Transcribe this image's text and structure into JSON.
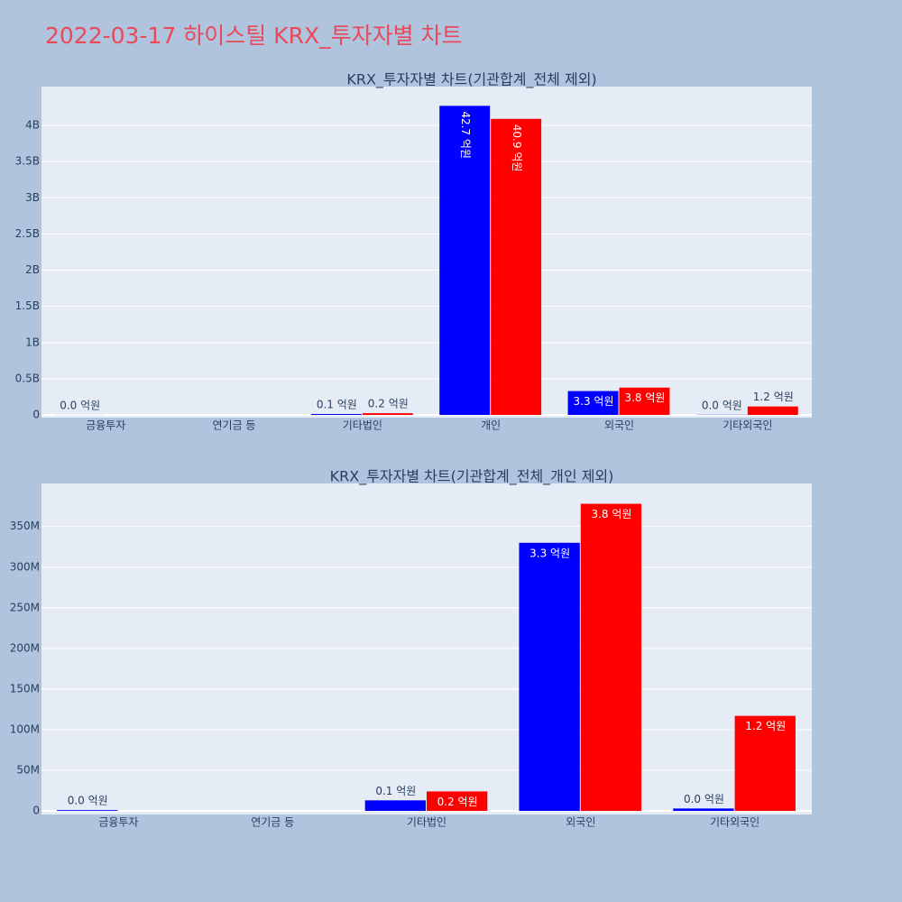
{
  "title": "2022-03-17 하이스틸 KRX_투자자별 차트",
  "chart_data": [
    {
      "type": "bar",
      "title": "KRX_투자자별 차트(기관합계_전체 제외)",
      "categories": [
        "금융투자",
        "연기금 등",
        "기타법인",
        "개인",
        "외국인",
        "기타외국인"
      ],
      "series": [
        {
          "color": "#0000ff",
          "values": [
            1000000,
            null,
            13000000,
            4270000000,
            330000000,
            3000000
          ],
          "value_labels": [
            "0.0 억원",
            null,
            "0.1 억원",
            "42.7 억원",
            "3.3 억원",
            "0.0 억원"
          ]
        },
        {
          "color": "#ff0000",
          "values": [
            null,
            null,
            24000000,
            4090000000,
            378000000,
            117000000
          ],
          "value_labels": [
            null,
            null,
            "0.2 억원",
            "40.9 억원",
            "3.8 억원",
            "1.2 억원"
          ]
        }
      ],
      "ylim": [
        -37000000,
        4536000000
      ],
      "yticks": [
        0,
        {
          "value": 500000000,
          "label": "0.5B"
        },
        {
          "value": 1000000000,
          "label": "1B"
        },
        {
          "value": 1500000000,
          "label": "1.5B"
        },
        {
          "value": 2000000000,
          "label": "2B"
        },
        {
          "value": 2500000000,
          "label": "2.5B"
        },
        {
          "value": 3000000000,
          "label": "3B"
        },
        {
          "value": 3500000000,
          "label": "3.5B"
        },
        {
          "value": 4000000000,
          "label": "4B"
        }
      ],
      "grid": true
    },
    {
      "type": "bar",
      "title": "KRX_투자자별 차트(기관합계_전체_개인 제외)",
      "categories": [
        "금융투자",
        "연기금 등",
        "기타법인",
        "외국인",
        "기타외국인"
      ],
      "series": [
        {
          "color": "#0000ff",
          "values": [
            1000000,
            null,
            13000000,
            330000000,
            3000000
          ],
          "value_labels": [
            "0.0 억원",
            null,
            "0.1 억원",
            "3.3 억원",
            "0.0 억원"
          ]
        },
        {
          "color": "#ff0000",
          "values": [
            null,
            null,
            24000000,
            378000000,
            117000000
          ],
          "value_labels": [
            null,
            null,
            "0.2 억원",
            "3.8 억원",
            "1.2 억원"
          ]
        }
      ],
      "ylim": [
        -4400000,
        403000000
      ],
      "yticks": [
        0,
        {
          "value": 50000000,
          "label": "50M"
        },
        {
          "value": 100000000,
          "label": "100M"
        },
        {
          "value": 150000000,
          "label": "150M"
        },
        {
          "value": 200000000,
          "label": "200M"
        },
        {
          "value": 250000000,
          "label": "250M"
        },
        {
          "value": 300000000,
          "label": "300M"
        },
        {
          "value": 350000000,
          "label": "350M"
        }
      ],
      "grid": true
    }
  ]
}
